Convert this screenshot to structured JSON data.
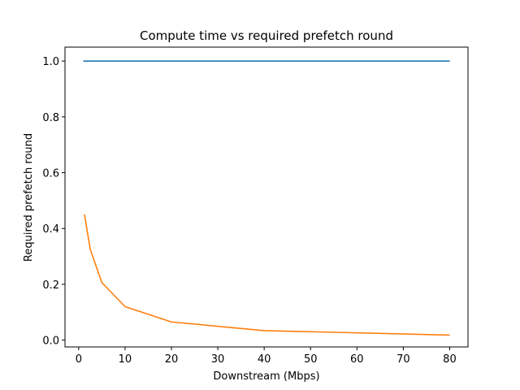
{
  "chart_data": {
    "type": "line",
    "title": "Compute time vs required prefetch round",
    "xlabel": "Downstream (Mbps)",
    "ylabel": "Required prefetch round",
    "xlim": [
      -2.95,
      83.95
    ],
    "ylim": [
      -0.0245,
      1.05
    ],
    "xticks": [
      0,
      10,
      20,
      30,
      40,
      50,
      60,
      70,
      80
    ],
    "yticks": [
      0.0,
      0.2,
      0.4,
      0.6,
      0.8,
      1.0
    ],
    "ytick_labels": [
      "0.0",
      "0.2",
      "0.4",
      "0.6",
      "0.8",
      "1.0"
    ],
    "grid": false,
    "series": [
      {
        "color": "#1f77b4",
        "x": [
          1,
          2.5,
          5,
          10,
          20,
          40,
          80
        ],
        "y": [
          1.0,
          1.0,
          1.0,
          1.0,
          1.0,
          1.0,
          1.0
        ]
      },
      {
        "color": "#ff7f0e",
        "x": [
          1.25,
          2.5,
          5,
          10,
          20,
          40,
          80
        ],
        "y": [
          0.45,
          0.325,
          0.206,
          0.12,
          0.065,
          0.034,
          0.018
        ]
      }
    ]
  }
}
